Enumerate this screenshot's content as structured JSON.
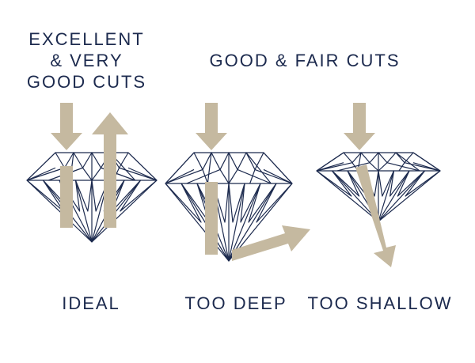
{
  "headers": {
    "left_lines": [
      "EXCELLENT",
      "& VERY",
      "GOOD CUTS"
    ],
    "right": "GOOD & FAIR CUTS"
  },
  "diamonds": [
    {
      "caption": "IDEAL"
    },
    {
      "caption": "TOO DEEP"
    },
    {
      "caption": "TOO SHALLOW"
    }
  ],
  "colors": {
    "outline": "#1c2a4e",
    "arrow": "#c5b9a0",
    "background": "#ffffff"
  }
}
